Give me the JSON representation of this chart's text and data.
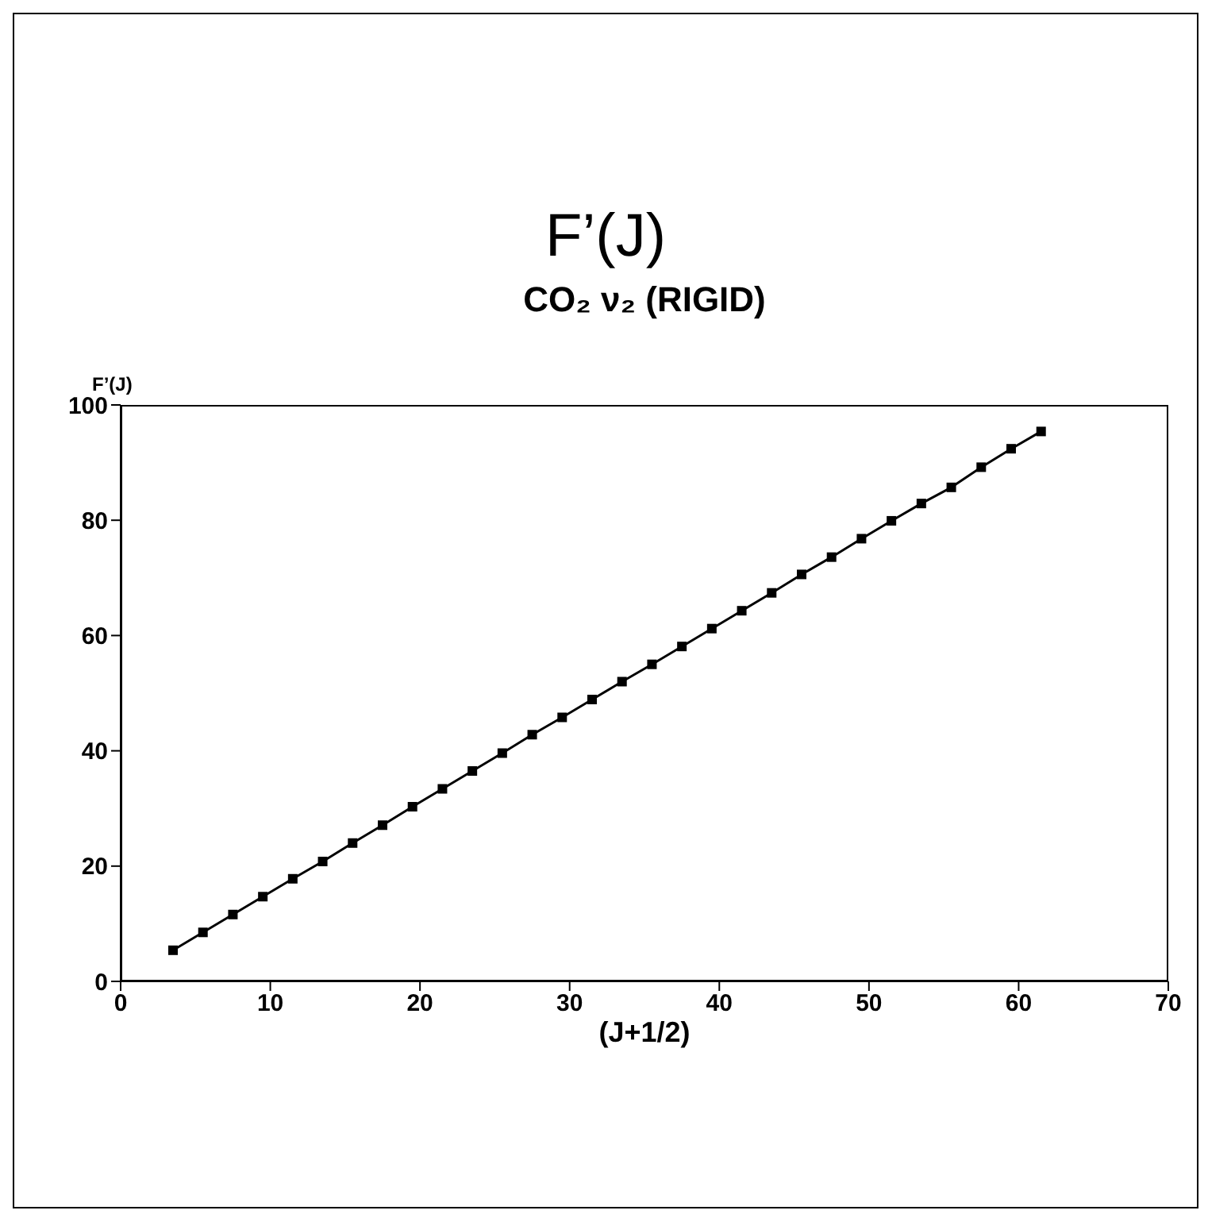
{
  "chart_data": {
    "type": "line",
    "title": "F’(J)",
    "subtitle": "CO₂ ν₂ (RIGID)",
    "xlabel": "(J+1/2)",
    "ylabel": "F’(J)",
    "x": [
      3.5,
      5.5,
      7.5,
      9.5,
      11.5,
      13.5,
      15.5,
      17.5,
      19.5,
      21.5,
      23.5,
      25.5,
      27.5,
      29.5,
      31.5,
      33.5,
      35.5,
      37.5,
      39.5,
      41.5,
      43.5,
      45.5,
      47.5,
      49.5,
      51.5,
      53.5,
      55.5,
      57.5,
      59.5,
      61.5
    ],
    "series": [
      {
        "color": "#000000",
        "values": [
          5.4,
          8.5,
          11.6,
          14.7,
          17.8,
          20.8,
          24.0,
          27.1,
          30.3,
          33.4,
          36.5,
          39.6,
          42.8,
          45.8,
          48.9,
          52.0,
          55.0,
          58.1,
          61.2,
          64.3,
          67.4,
          70.6,
          73.6,
          76.8,
          79.9,
          82.9,
          85.7,
          89.2,
          92.4,
          95.4
        ]
      }
    ],
    "xlim": [
      0,
      70
    ],
    "xticks": [
      0,
      10,
      20,
      30,
      40,
      50,
      60,
      70
    ],
    "ylim": [
      0,
      100
    ],
    "yticks": [
      0,
      20,
      40,
      60,
      80,
      100
    ],
    "grid": false,
    "legend": false,
    "marker": "square",
    "line_style": "solid"
  }
}
